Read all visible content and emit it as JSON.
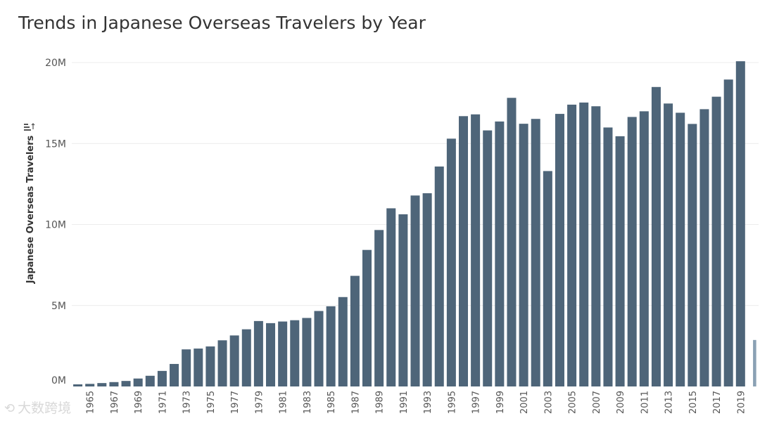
{
  "chart_data": {
    "type": "bar",
    "title": "Trends in Japanese Overseas Travelers by Year",
    "xlabel": "",
    "ylabel": "Japanese Overseas Travelers",
    "ylim": [
      0,
      20000000
    ],
    "yticks": [
      {
        "value": 0,
        "label": "0M"
      },
      {
        "value": 5000000,
        "label": "5M"
      },
      {
        "value": 10000000,
        "label": "10M"
      },
      {
        "value": 15000000,
        "label": "15M"
      },
      {
        "value": 20000000,
        "label": "20M"
      }
    ],
    "categories": [
      "1964",
      "1965",
      "1966",
      "1967",
      "1968",
      "1969",
      "1970",
      "1971",
      "1972",
      "1973",
      "1974",
      "1975",
      "1976",
      "1977",
      "1978",
      "1979",
      "1980",
      "1981",
      "1982",
      "1983",
      "1984",
      "1985",
      "1986",
      "1987",
      "1988",
      "1989",
      "1990",
      "1991",
      "1992",
      "1993",
      "1994",
      "1995",
      "1996",
      "1997",
      "1998",
      "1999",
      "2000",
      "2001",
      "2002",
      "2003",
      "2004",
      "2005",
      "2006",
      "2007",
      "2008",
      "2009",
      "2010",
      "2011",
      "2012",
      "2013",
      "2014",
      "2015",
      "2016",
      "2017",
      "2018",
      "2019",
      "2020"
    ],
    "values": [
      130000,
      160000,
      210000,
      270000,
      340000,
      490000,
      660000,
      960000,
      1390000,
      2290000,
      2340000,
      2470000,
      2850000,
      3150000,
      3530000,
      4040000,
      3910000,
      4010000,
      4090000,
      4230000,
      4660000,
      4950000,
      5520000,
      6830000,
      8430000,
      9660000,
      11000000,
      10630000,
      11790000,
      11930000,
      13580000,
      15300000,
      16690000,
      16800000,
      15810000,
      16360000,
      17820000,
      16220000,
      16520000,
      13300000,
      16830000,
      17400000,
      17530000,
      17300000,
      15990000,
      15450000,
      16640000,
      16990000,
      18490000,
      17470000,
      16900000,
      16210000,
      17120000,
      17890000,
      18950000,
      20080000,
      2870000
    ],
    "xtick_labels": [
      "1965",
      "1967",
      "1969",
      "1971",
      "1973",
      "1975",
      "1977",
      "1979",
      "1981",
      "1983",
      "1985",
      "1987",
      "1989",
      "1991",
      "1993",
      "1995",
      "1997",
      "1999",
      "2001",
      "2003",
      "2005",
      "2007",
      "2009",
      "2011",
      "2013",
      "2015",
      "2017",
      "2019"
    ],
    "bar_color": "#4e6579",
    "last_bar_color": "#8aa1b4",
    "grid": true
  },
  "watermark": {
    "icon": "tableau-logo-icon",
    "text": "大数跨境"
  },
  "sort_icon": "sort-icon"
}
